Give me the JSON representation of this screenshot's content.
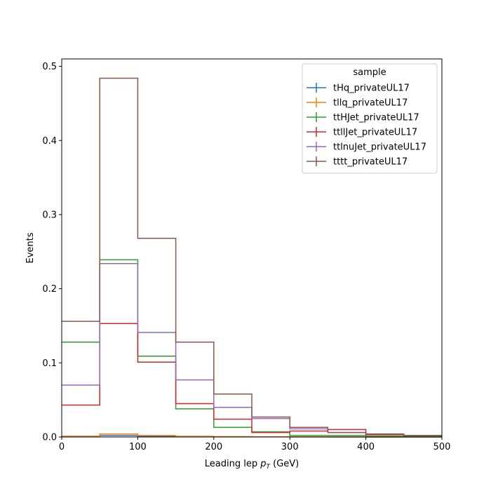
{
  "chart_data": {
    "type": "line",
    "drawstyle": "step-histogram",
    "xlabel_prefix": "Leading lep ",
    "xlabel_var": "p",
    "xlabel_sub": "T",
    "xlabel_suffix": " (GeV)",
    "ylabel": "Events",
    "xlim": [
      0,
      500
    ],
    "ylim": [
      0,
      0.51
    ],
    "xticks": [
      0,
      100,
      200,
      300,
      400,
      500
    ],
    "yticks": [
      0.0,
      0.1,
      0.2,
      0.3,
      0.4,
      0.5
    ],
    "grid": false,
    "legend": {
      "title": "sample",
      "placement": "top-right"
    },
    "bin_edges": [
      0,
      50,
      100,
      150,
      200,
      250,
      300,
      350,
      400,
      450,
      500
    ],
    "series": [
      {
        "name": "tHq_privateUL17",
        "color": "#1f77b4",
        "values": [
          0.001,
          0.002,
          0.001,
          0.0005,
          0.0003,
          0.0002,
          0.0001,
          0.0001,
          0.0,
          0.0
        ]
      },
      {
        "name": "tllq_privateUL17",
        "color": "#ff7f0e",
        "values": [
          0.001,
          0.004,
          0.002,
          0.001,
          0.0005,
          0.0003,
          0.0002,
          0.0001,
          0.0,
          0.0
        ]
      },
      {
        "name": "ttHJet_privateUL17",
        "color": "#2ca02c",
        "values": [
          0.128,
          0.239,
          0.109,
          0.038,
          0.013,
          0.007,
          0.002,
          0.002,
          0.001,
          0.001
        ]
      },
      {
        "name": "ttllJet_privateUL17",
        "color": "#d62728",
        "values": [
          0.043,
          0.153,
          0.101,
          0.045,
          0.024,
          0.006,
          0.008,
          0.01,
          0.003,
          0.002
        ]
      },
      {
        "name": "ttlnuJet_privateUL17",
        "color": "#9467bd",
        "values": [
          0.07,
          0.234,
          0.141,
          0.077,
          0.04,
          0.025,
          0.011,
          0.006,
          0.004,
          0.002
        ]
      },
      {
        "name": "tttt_privateUL17",
        "color": "#8c564b",
        "values": [
          0.156,
          0.484,
          0.268,
          0.128,
          0.058,
          0.027,
          0.013,
          0.006,
          0.004,
          0.002
        ]
      }
    ]
  }
}
